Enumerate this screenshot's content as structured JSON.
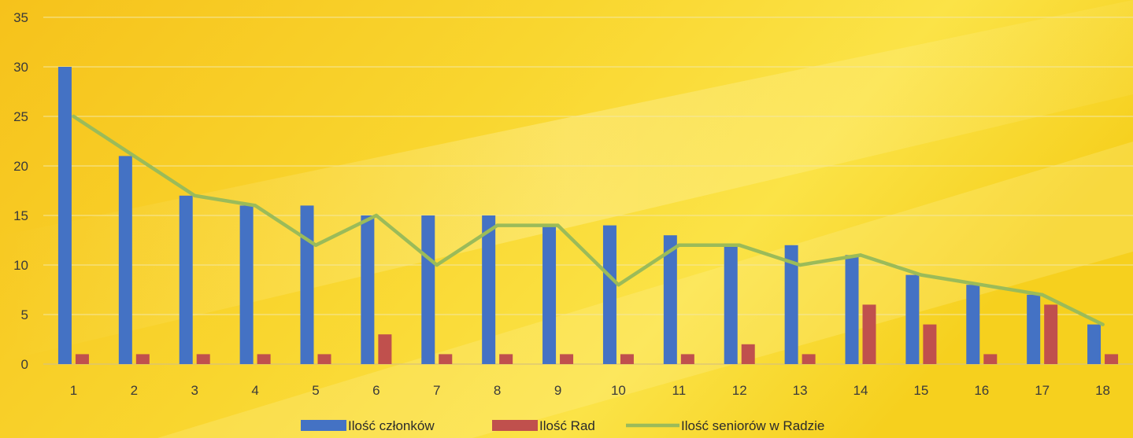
{
  "chart_data": {
    "type": "bar",
    "title": "",
    "xlabel": "",
    "ylabel": "",
    "categories": [
      "1",
      "2",
      "3",
      "4",
      "5",
      "6",
      "7",
      "8",
      "9",
      "10",
      "11",
      "12",
      "13",
      "14",
      "15",
      "16",
      "17",
      "18"
    ],
    "ylim": [
      0,
      35
    ],
    "yticks": [
      0,
      5,
      10,
      15,
      20,
      25,
      30,
      35
    ],
    "grid": true,
    "legend_position": "bottom",
    "series": [
      {
        "name": "Ilość członków",
        "type": "bar",
        "color": "#4472c4",
        "values": [
          30,
          21,
          17,
          16,
          16,
          15,
          15,
          15,
          14,
          14,
          13,
          12,
          12,
          11,
          9,
          8,
          7,
          4
        ]
      },
      {
        "name": "Ilość Rad",
        "type": "bar",
        "color": "#c0504d",
        "values": [
          1,
          1,
          1,
          1,
          1,
          3,
          1,
          1,
          1,
          1,
          1,
          2,
          1,
          6,
          4,
          1,
          6,
          1
        ]
      },
      {
        "name": "Ilość seniorów w Radzie",
        "type": "line",
        "color": "#9bbb59",
        "values": [
          25,
          21,
          17,
          16,
          12,
          15,
          10,
          14,
          14,
          8,
          12,
          12,
          10,
          11,
          9,
          8,
          7,
          4
        ]
      }
    ]
  }
}
